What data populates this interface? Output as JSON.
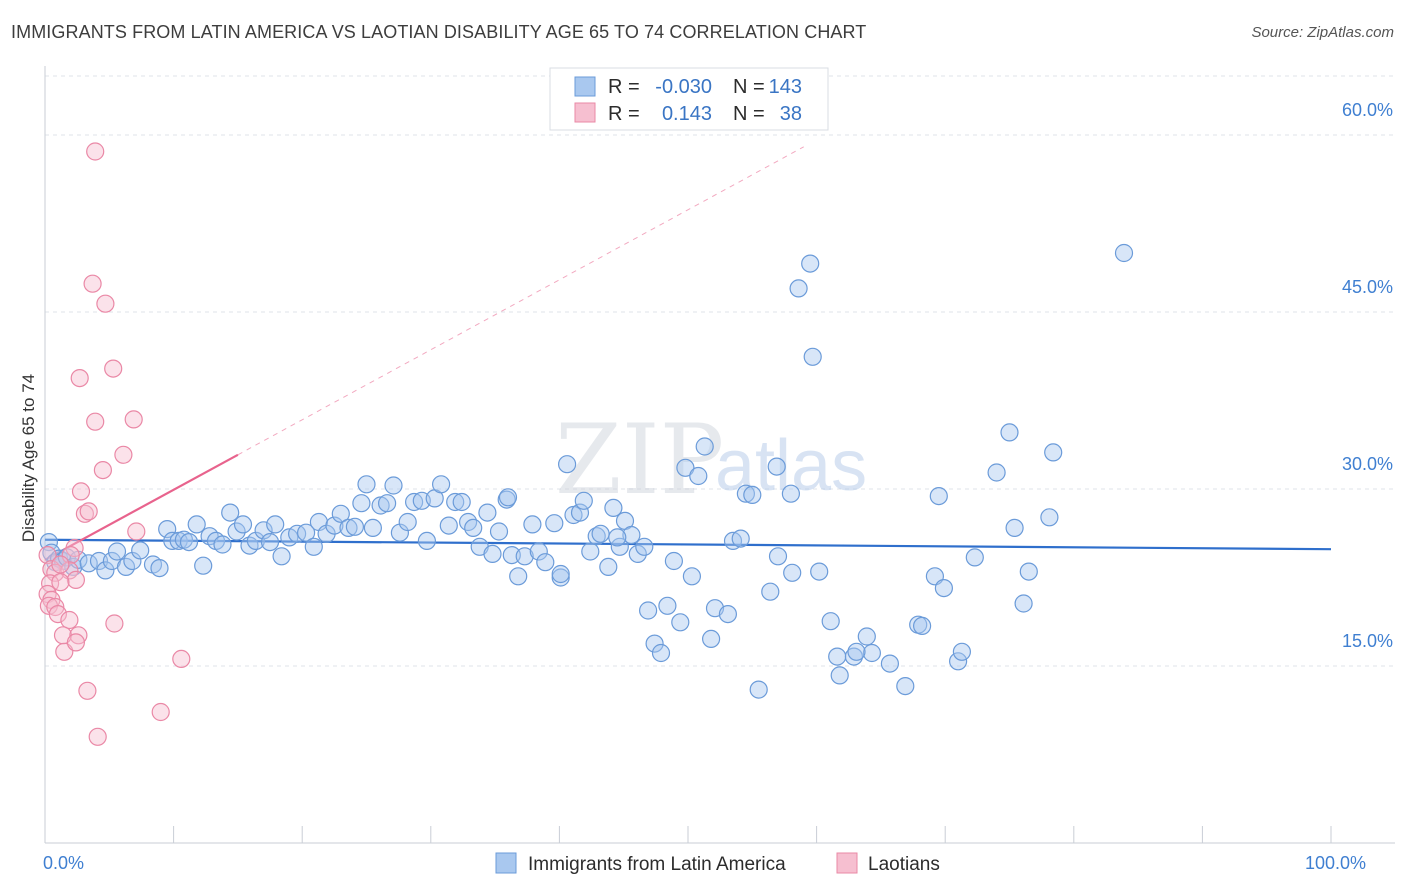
{
  "title": "IMMIGRANTS FROM LATIN AMERICA VS LAOTIAN DISABILITY AGE 65 TO 74 CORRELATION CHART",
  "source": "Source: ZipAtlas.com",
  "watermark": {
    "zip": "ZIP",
    "atlas": "atlas"
  },
  "colors": {
    "blue_fill": "#a9c8ef",
    "blue_stroke": "#6b9bd9",
    "blue_line": "#2f6fcc",
    "pink_fill": "#f6bfd0",
    "pink_stroke": "#ea88a6",
    "pink_line": "#e8638d",
    "tick_label": "#3f7fd1",
    "grid": "#dfe3ea"
  },
  "legend": {
    "rows": [
      {
        "r_label": "R =",
        "r_value": "-0.030",
        "n_label": "N =",
        "n_value": "143",
        "color": "blue"
      },
      {
        "r_label": "R =",
        "r_value": "0.143",
        "n_label": "N =",
        "n_value": "38",
        "color": "pink"
      }
    ]
  },
  "bottom_legend": [
    {
      "label": "Immigrants from Latin America",
      "color": "blue"
    },
    {
      "label": "Laotians",
      "color": "pink"
    }
  ],
  "chart_data": {
    "type": "scatter",
    "title": "IMMIGRANTS FROM LATIN AMERICA VS LAOTIAN DISABILITY AGE 65 TO 74 CORRELATION CHART",
    "xlabel": "",
    "ylabel": "Disability Age 65 to 74",
    "xlim": [
      0,
      100
    ],
    "ylim": [
      0,
      65
    ],
    "x_tick_labels": [
      {
        "value": 0,
        "label": "0.0%"
      },
      {
        "value": 100,
        "label": "100.0%"
      }
    ],
    "x_minor_ticks": [
      10,
      20,
      30,
      40,
      50,
      60,
      70,
      80,
      90,
      100
    ],
    "y_ticks": [
      {
        "value": 15,
        "label": "15.0%"
      },
      {
        "value": 30,
        "label": "30.0%"
      },
      {
        "value": 45,
        "label": "45.0%"
      },
      {
        "value": 60,
        "label": "60.0%"
      }
    ],
    "grid": true,
    "legend_position": "top-center",
    "series": [
      {
        "name": "Immigrants from Latin America",
        "color": "blue",
        "trend": {
          "x": [
            0,
            100
          ],
          "y": [
            25.7,
            24.9
          ],
          "dashed": false
        },
        "points": [
          [
            0.3,
            25.5
          ],
          [
            0.5,
            24.6
          ],
          [
            0.8,
            23.8
          ],
          [
            1.1,
            24.1
          ],
          [
            1.4,
            23.9
          ],
          [
            1.7,
            24.2
          ],
          [
            2.2,
            23.4
          ],
          [
            2.6,
            24.0
          ],
          [
            3.4,
            23.7
          ],
          [
            4.2,
            23.9
          ],
          [
            4.7,
            23.1
          ],
          [
            5.2,
            23.9
          ],
          [
            5.6,
            24.7
          ],
          [
            6.3,
            23.4
          ],
          [
            6.8,
            23.9
          ],
          [
            7.4,
            24.8
          ],
          [
            8.4,
            23.6
          ],
          [
            8.9,
            23.3
          ],
          [
            9.5,
            26.6
          ],
          [
            9.9,
            25.6
          ],
          [
            10.4,
            25.6
          ],
          [
            10.8,
            25.7
          ],
          [
            11.2,
            25.5
          ],
          [
            11.8,
            27.0
          ],
          [
            12.3,
            23.5
          ],
          [
            12.8,
            26.0
          ],
          [
            13.3,
            25.6
          ],
          [
            13.8,
            25.3
          ],
          [
            14.4,
            28.0
          ],
          [
            14.9,
            26.4
          ],
          [
            15.4,
            27.0
          ],
          [
            15.9,
            25.2
          ],
          [
            16.4,
            25.6
          ],
          [
            17.0,
            26.5
          ],
          [
            17.5,
            25.5
          ],
          [
            17.9,
            27.0
          ],
          [
            18.4,
            24.3
          ],
          [
            19.0,
            25.9
          ],
          [
            19.6,
            26.2
          ],
          [
            20.3,
            26.3
          ],
          [
            20.9,
            25.1
          ],
          [
            21.3,
            27.2
          ],
          [
            21.9,
            26.2
          ],
          [
            22.5,
            26.9
          ],
          [
            23.0,
            27.9
          ],
          [
            23.6,
            26.7
          ],
          [
            24.1,
            26.8
          ],
          [
            24.6,
            28.8
          ],
          [
            25.0,
            30.4
          ],
          [
            25.5,
            26.7
          ],
          [
            26.1,
            28.6
          ],
          [
            26.6,
            28.8
          ],
          [
            27.1,
            30.3
          ],
          [
            27.6,
            26.3
          ],
          [
            28.2,
            27.2
          ],
          [
            28.7,
            28.9
          ],
          [
            29.3,
            29.0
          ],
          [
            29.7,
            25.6
          ],
          [
            30.3,
            29.2
          ],
          [
            30.8,
            30.4
          ],
          [
            31.4,
            26.9
          ],
          [
            31.9,
            28.9
          ],
          [
            32.4,
            28.9
          ],
          [
            32.9,
            27.2
          ],
          [
            33.3,
            26.7
          ],
          [
            33.8,
            25.1
          ],
          [
            34.4,
            28.0
          ],
          [
            34.8,
            24.5
          ],
          [
            35.3,
            26.4
          ],
          [
            35.9,
            29.1
          ],
          [
            36.3,
            24.4
          ],
          [
            36.8,
            22.6
          ],
          [
            37.3,
            24.3
          ],
          [
            37.9,
            27.0
          ],
          [
            38.4,
            24.7
          ],
          [
            38.9,
            23.8
          ],
          [
            39.6,
            27.1
          ],
          [
            40.1,
            22.5
          ],
          [
            40.6,
            32.1
          ],
          [
            41.1,
            27.8
          ],
          [
            41.6,
            28.0
          ],
          [
            41.9,
            29.0
          ],
          [
            42.4,
            24.7
          ],
          [
            42.9,
            26.0
          ],
          [
            43.2,
            26.2
          ],
          [
            43.8,
            23.4
          ],
          [
            44.2,
            28.4
          ],
          [
            44.7,
            25.1
          ],
          [
            45.1,
            27.3
          ],
          [
            45.6,
            26.1
          ],
          [
            46.1,
            24.5
          ],
          [
            46.6,
            25.1
          ],
          [
            46.9,
            19.7
          ],
          [
            47.4,
            16.9
          ],
          [
            47.9,
            16.1
          ],
          [
            48.4,
            20.1
          ],
          [
            48.9,
            23.9
          ],
          [
            49.4,
            18.7
          ],
          [
            49.8,
            31.8
          ],
          [
            50.3,
            22.6
          ],
          [
            50.8,
            31.1
          ],
          [
            51.3,
            33.6
          ],
          [
            51.8,
            17.3
          ],
          [
            52.1,
            19.9
          ],
          [
            53.1,
            19.4
          ],
          [
            53.5,
            25.6
          ],
          [
            54.1,
            25.8
          ],
          [
            54.5,
            29.6
          ],
          [
            55.0,
            29.5
          ],
          [
            55.5,
            13.0
          ],
          [
            56.4,
            21.3
          ],
          [
            56.9,
            31.9
          ],
          [
            57.0,
            24.3
          ],
          [
            58.1,
            22.9
          ],
          [
            58.6,
            47.0
          ],
          [
            59.5,
            49.1
          ],
          [
            59.7,
            41.2
          ],
          [
            60.2,
            23.0
          ],
          [
            61.1,
            18.8
          ],
          [
            61.6,
            15.8
          ],
          [
            61.8,
            14.2
          ],
          [
            62.9,
            15.8
          ],
          [
            63.9,
            17.5
          ],
          [
            64.3,
            16.1
          ],
          [
            65.7,
            15.2
          ],
          [
            66.9,
            13.3
          ],
          [
            67.9,
            18.5
          ],
          [
            68.2,
            18.4
          ],
          [
            69.2,
            22.6
          ],
          [
            69.5,
            29.4
          ],
          [
            69.9,
            21.6
          ],
          [
            71.0,
            15.4
          ],
          [
            71.3,
            16.2
          ],
          [
            72.3,
            24.2
          ],
          [
            74.0,
            31.4
          ],
          [
            75.0,
            34.8
          ],
          [
            75.4,
            26.7
          ],
          [
            76.1,
            20.3
          ],
          [
            76.5,
            23.0
          ],
          [
            78.1,
            27.6
          ],
          [
            78.4,
            33.1
          ],
          [
            83.9,
            50.0
          ],
          [
            58.0,
            29.6
          ],
          [
            63.1,
            16.2
          ],
          [
            40.1,
            22.8
          ],
          [
            44.5,
            25.9
          ],
          [
            36.0,
            29.3
          ]
        ]
      },
      {
        "name": "Laotians",
        "color": "pink",
        "trend": {
          "x": [
            0,
            15
          ],
          "y": [
            24.0,
            32.9
          ],
          "dashed": false,
          "extension": {
            "x": [
              15,
              59
            ],
            "y": [
              32.9,
              59.0
            ],
            "dashed": true
          }
        },
        "points": [
          [
            3.9,
            58.6
          ],
          [
            3.7,
            47.4
          ],
          [
            4.7,
            45.7
          ],
          [
            5.3,
            40.2
          ],
          [
            2.7,
            39.4
          ],
          [
            3.9,
            35.7
          ],
          [
            6.9,
            35.9
          ],
          [
            6.1,
            32.9
          ],
          [
            4.5,
            31.6
          ],
          [
            2.8,
            29.8
          ],
          [
            3.1,
            27.9
          ],
          [
            3.4,
            28.1
          ],
          [
            7.1,
            26.4
          ],
          [
            2.3,
            25.0
          ],
          [
            0.2,
            24.4
          ],
          [
            0.5,
            23.2
          ],
          [
            0.8,
            22.9
          ],
          [
            2.0,
            24.4
          ],
          [
            1.9,
            23.1
          ],
          [
            2.4,
            22.3
          ],
          [
            0.4,
            22.0
          ],
          [
            1.2,
            22.1
          ],
          [
            0.2,
            21.1
          ],
          [
            0.5,
            20.6
          ],
          [
            0.3,
            20.1
          ],
          [
            0.8,
            20.0
          ],
          [
            1.0,
            19.4
          ],
          [
            1.9,
            18.9
          ],
          [
            1.4,
            17.6
          ],
          [
            2.6,
            17.6
          ],
          [
            1.5,
            16.2
          ],
          [
            5.4,
            18.6
          ],
          [
            10.6,
            15.6
          ],
          [
            2.4,
            17.0
          ],
          [
            3.3,
            12.9
          ],
          [
            9.0,
            11.1
          ],
          [
            4.1,
            9.0
          ],
          [
            1.2,
            23.6
          ]
        ]
      }
    ]
  }
}
